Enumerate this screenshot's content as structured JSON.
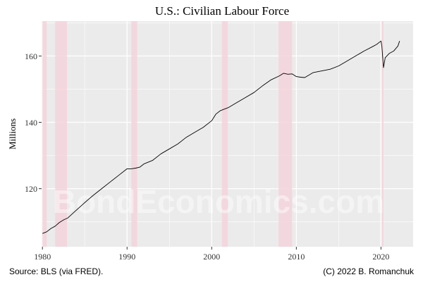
{
  "chart_data": {
    "type": "line",
    "title": "U.S.: Civilian Labour Force",
    "xlabel": "",
    "ylabel": "Millions",
    "xlim": [
      1979.9,
      2023.8
    ],
    "ylim": [
      102.5,
      170.5
    ],
    "x_ticks": [
      1980,
      1990,
      2000,
      2010,
      2020
    ],
    "y_ticks": [
      120,
      140,
      160
    ],
    "grid": true,
    "recessions": [
      [
        1980.0,
        1980.5
      ],
      [
        1981.5,
        1982.9
      ],
      [
        1990.5,
        1991.2
      ],
      [
        2001.2,
        2001.9
      ],
      [
        2007.9,
        2009.5
      ],
      [
        2020.1,
        2020.3
      ]
    ],
    "series": [
      {
        "name": "",
        "x": [
          1980.0,
          1980.5,
          1981.0,
          1981.5,
          1982.0,
          1982.5,
          1983.0,
          1984.0,
          1985.0,
          1986.0,
          1987.0,
          1988.0,
          1989.0,
          1990.0,
          1990.5,
          1991.0,
          1991.5,
          1992.0,
          1993.0,
          1994.0,
          1995.0,
          1996.0,
          1997.0,
          1998.0,
          1999.0,
          2000.0,
          2000.5,
          2001.0,
          2002.0,
          2003.0,
          2004.0,
          2005.0,
          2006.0,
          2007.0,
          2008.0,
          2008.5,
          2009.0,
          2009.5,
          2010.0,
          2010.5,
          2011.0,
          2012.0,
          2013.0,
          2014.0,
          2015.0,
          2016.0,
          2017.0,
          2018.0,
          2019.0,
          2019.5,
          2020.0,
          2020.1,
          2020.3,
          2020.5,
          2021.0,
          2021.5,
          2022.0,
          2022.2
        ],
        "y": [
          106.5,
          107.0,
          108.0,
          108.7,
          109.8,
          110.6,
          111.2,
          113.5,
          115.8,
          118.0,
          120.0,
          122.0,
          124.0,
          126.0,
          126.0,
          126.2,
          126.5,
          127.5,
          128.5,
          130.5,
          132.0,
          133.5,
          135.5,
          137.0,
          138.5,
          140.5,
          142.5,
          143.5,
          144.5,
          146.0,
          147.5,
          149.0,
          151.0,
          152.8,
          154.0,
          154.8,
          154.5,
          154.6,
          153.8,
          153.6,
          153.5,
          155.0,
          155.5,
          156.0,
          157.0,
          158.5,
          160.0,
          161.5,
          162.8,
          163.5,
          164.5,
          163.0,
          156.5,
          159.5,
          160.8,
          161.5,
          163.0,
          164.5
        ]
      }
    ]
  },
  "watermark": "BondEconomics.com",
  "footer": {
    "source": "Source: BLS (via FRED).",
    "credit": "(C) 2022 B. Romanchuk"
  },
  "colors": {
    "panel": "#ebebeb",
    "gridline": "#ffffff",
    "recession": "#f4d4dc",
    "line": "#000000"
  }
}
